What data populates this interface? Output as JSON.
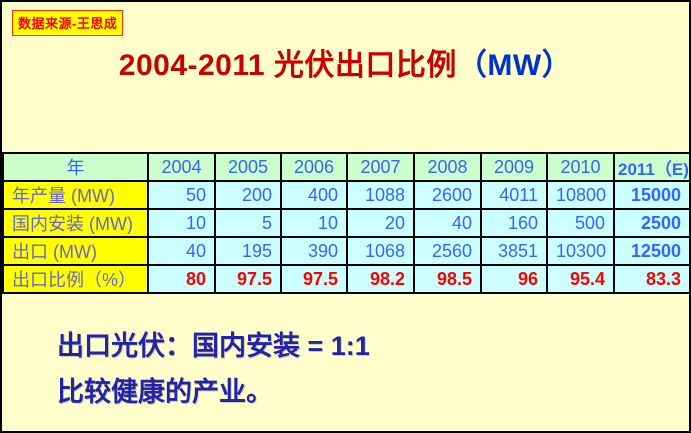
{
  "badge": {
    "text": "数据来源-王思成"
  },
  "title": {
    "red": "2004-2011 光伏出口比例",
    "blue": "（MW）"
  },
  "table": {
    "corner_label": "年",
    "years": [
      "2004",
      "2005",
      "2006",
      "2007",
      "2008",
      "2009",
      "2010",
      "2011（E)"
    ],
    "rows": [
      {
        "label": "年产量 (MW)",
        "style": "blue",
        "values": [
          "50",
          "200",
          "400",
          "1088",
          "2600",
          "4011",
          "10800",
          "15000"
        ]
      },
      {
        "label": "国内安装 (MW)",
        "style": "blue",
        "values": [
          "10",
          "5",
          "10",
          "20",
          "40",
          "160",
          "500",
          "2500"
        ]
      },
      {
        "label": "出口 (MW)",
        "style": "blue",
        "values": [
          "40",
          "195",
          "390",
          "1068",
          "2560",
          "3851",
          "10300",
          "12500"
        ]
      },
      {
        "label": "出口比例（%）",
        "style": "ratio",
        "values": [
          "80",
          "97.5",
          "97.5",
          "98.2",
          "98.5",
          "96",
          "95.4",
          "83.3"
        ]
      }
    ]
  },
  "footer": {
    "line1": "出口光伏：国内安装 = 1:1",
    "line2": "比较健康的产业。"
  },
  "colors": {
    "page_background": "#FFFFCC",
    "badge_background": "#FFFF00",
    "badge_text": "#FF0000",
    "title_red": "#CC0000",
    "title_blue": "#0033CC",
    "header_background": "#CCFFCC",
    "row_label_background": "#FFFF00",
    "cell_background": "#CCFFFF",
    "cell_text_blue": "#3366FF",
    "ratio_text_red": "#FF0000",
    "footer_text": "#2222AA"
  },
  "chart_data": {
    "type": "table",
    "title": "2004-2011 光伏出口比例（MW）",
    "categories": [
      "2004",
      "2005",
      "2006",
      "2007",
      "2008",
      "2009",
      "2010",
      "2011 (E)"
    ],
    "series": [
      {
        "name": "年产量 (MW)",
        "values": [
          50,
          200,
          400,
          1088,
          2600,
          4011,
          10800,
          15000
        ]
      },
      {
        "name": "国内安装 (MW)",
        "values": [
          10,
          5,
          10,
          20,
          40,
          160,
          500,
          2500
        ]
      },
      {
        "name": "出口 (MW)",
        "values": [
          40,
          195,
          390,
          1068,
          2560,
          3851,
          10300,
          12500
        ]
      },
      {
        "name": "出口比例 (%)",
        "values": [
          80,
          97.5,
          97.5,
          98.2,
          98.5,
          96,
          95.4,
          83.3
        ]
      }
    ],
    "notes": [
      "出口光伏：国内安装 = 1:1",
      "比较健康的产业。"
    ],
    "source": "数据来源-王思成"
  }
}
